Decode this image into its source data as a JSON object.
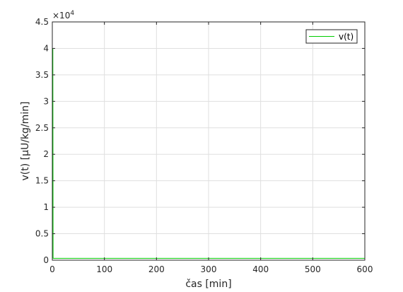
{
  "chart_data": {
    "type": "line",
    "xlabel": "čas [min]",
    "ylabel": "v(t) [μU/kg/min]",
    "xlim": [
      0,
      600
    ],
    "ylim": [
      0,
      45000
    ],
    "xticks": [
      0,
      100,
      200,
      300,
      400,
      500,
      600
    ],
    "xtick_labels": [
      "0",
      "100",
      "200",
      "300",
      "400",
      "500",
      "600"
    ],
    "yticks": [
      0,
      5000,
      10000,
      15000,
      20000,
      25000,
      30000,
      35000,
      40000,
      45000
    ],
    "ytick_labels": [
      "0",
      "0.5",
      "1",
      "1.5",
      "2",
      "2.5",
      "3",
      "3.5",
      "4",
      "4.5"
    ],
    "y_exponent_label": "×10",
    "y_exponent": "4",
    "grid": true,
    "legend_position": "top-right",
    "series": [
      {
        "name": "v(t)",
        "color": "#00cc00",
        "x": [
          0,
          0,
          0.5,
          1,
          1.5,
          2,
          600
        ],
        "y": [
          0,
          40000,
          40000,
          40000,
          350,
          350,
          350
        ]
      }
    ]
  }
}
